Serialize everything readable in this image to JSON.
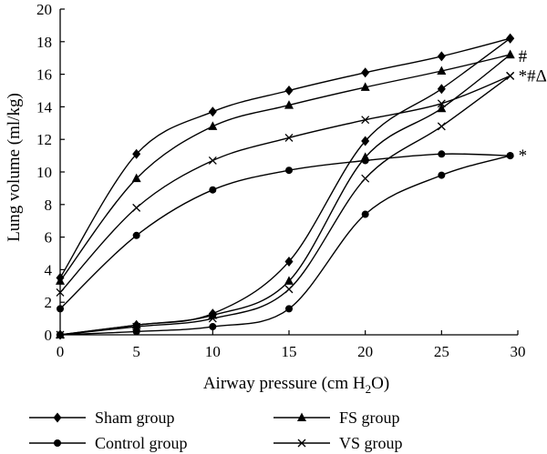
{
  "chart_data": {
    "type": "line",
    "xlabel": "Airway pressure (cm H",
    "xlabel_sub": "2",
    "xlabel_end": "O)",
    "ylabel": "Lung volume (ml/kg)",
    "xlim": [
      0,
      30
    ],
    "ylim": [
      0,
      20
    ],
    "xticks": [
      0,
      5,
      10,
      15,
      20,
      25,
      30
    ],
    "yticks": [
      0,
      2,
      4,
      6,
      8,
      10,
      12,
      14,
      16,
      18,
      20
    ],
    "grid": false,
    "legend_position": "bottom",
    "series": [
      {
        "name": "Sham group",
        "marker": "diamond",
        "end_annotation": "",
        "inflation": {
          "x": [
            0,
            5,
            10,
            15,
            20,
            25,
            29.5
          ],
          "y": [
            0,
            0.6,
            1.3,
            4.5,
            11.9,
            15.1,
            18.2
          ]
        },
        "deflation": {
          "x": [
            29.5,
            25,
            20,
            15,
            10,
            5,
            0
          ],
          "y": [
            18.2,
            17.1,
            16.1,
            15.0,
            13.7,
            11.1,
            3.5
          ]
        }
      },
      {
        "name": "FS group",
        "marker": "triangle",
        "end_annotation": "#",
        "inflation": {
          "x": [
            0,
            5,
            10,
            15,
            20,
            25,
            29.5
          ],
          "y": [
            0,
            0.6,
            1.2,
            3.3,
            10.9,
            13.9,
            17.2
          ]
        },
        "deflation": {
          "x": [
            29.5,
            25,
            20,
            15,
            10,
            5,
            0
          ],
          "y": [
            17.2,
            16.2,
            15.2,
            14.1,
            12.8,
            9.6,
            3.3
          ]
        }
      },
      {
        "name": "Control group",
        "marker": "circle",
        "end_annotation": "*",
        "inflation": {
          "x": [
            0,
            5,
            10,
            15,
            20,
            25,
            29.5
          ],
          "y": [
            0,
            0.2,
            0.5,
            1.6,
            7.4,
            9.8,
            11.0
          ]
        },
        "deflation": {
          "x": [
            29.5,
            25,
            20,
            15,
            10,
            5,
            0
          ],
          "y": [
            11.0,
            11.1,
            10.7,
            10.1,
            8.9,
            6.1,
            1.6
          ]
        }
      },
      {
        "name": "VS group",
        "marker": "x",
        "end_annotation": "*#Δ",
        "inflation": {
          "x": [
            0,
            5,
            10,
            15,
            20,
            25,
            29.5
          ],
          "y": [
            0,
            0.5,
            1.0,
            2.8,
            9.6,
            12.8,
            15.9
          ]
        },
        "deflation": {
          "x": [
            29.5,
            25,
            20,
            15,
            10,
            5,
            0
          ],
          "y": [
            15.9,
            14.2,
            13.2,
            12.1,
            10.7,
            7.8,
            2.6
          ]
        }
      }
    ]
  }
}
